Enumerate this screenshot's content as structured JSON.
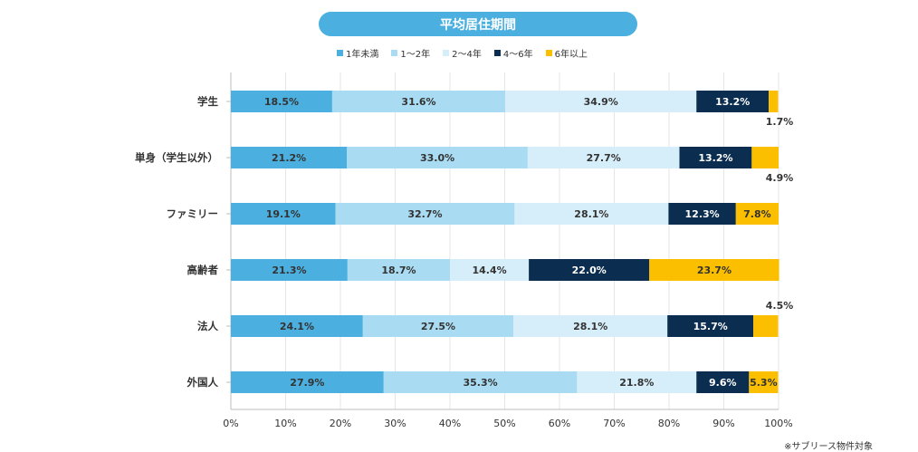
{
  "chart_data": {
    "type": "bar",
    "orientation": "horizontal",
    "stacked": true,
    "title": "平均居住期間",
    "categories": [
      "学生",
      "単身（学生以外）",
      "ファミリー",
      "高齢者",
      "法人",
      "外国人"
    ],
    "series": [
      {
        "name": "1年未満",
        "color": "#4bb0df",
        "label_color": "#333333",
        "values": [
          18.5,
          21.2,
          19.1,
          21.3,
          24.1,
          27.9
        ]
      },
      {
        "name": "1〜2年",
        "color": "#a9dcf2",
        "label_color": "#333333",
        "values": [
          31.6,
          33.0,
          32.7,
          18.7,
          27.5,
          35.3
        ]
      },
      {
        "name": "2〜4年",
        "color": "#d6eef9",
        "label_color": "#333333",
        "values": [
          34.9,
          27.7,
          28.1,
          14.4,
          28.1,
          21.8
        ]
      },
      {
        "name": "4〜6年",
        "color": "#0b2d4f",
        "label_color": "#ffffff",
        "values": [
          13.2,
          13.2,
          12.3,
          22.0,
          15.7,
          9.6
        ]
      },
      {
        "name": "6年以上",
        "color": "#fbbf00",
        "label_color": "#333333",
        "values": [
          1.7,
          4.9,
          7.8,
          23.7,
          4.5,
          5.3
        ]
      }
    ],
    "value_labels": [
      [
        "18.5%",
        "31.6%",
        "34.9%",
        "13.2%",
        "1.7%"
      ],
      [
        "21.2%",
        "33.0%",
        "27.7%",
        "13.2%",
        "4.9%"
      ],
      [
        "19.1%",
        "32.7%",
        "28.1%",
        "12.3%",
        "7.8%"
      ],
      [
        "21.3%",
        "18.7%",
        "14.4%",
        "22.0%",
        "23.7%"
      ],
      [
        "24.1%",
        "27.5%",
        "28.1%",
        "15.7%",
        "4.5%"
      ],
      [
        "27.9%",
        "35.3%",
        "21.8%",
        "9.6%",
        "5.3%"
      ]
    ],
    "outside_labels": [
      {
        "row": 0,
        "series": 4,
        "position": "below"
      },
      {
        "row": 1,
        "series": 4,
        "position": "below"
      },
      {
        "row": 4,
        "series": 4,
        "position": "above"
      }
    ],
    "xlim": [
      0,
      100
    ],
    "x_ticks": [
      0,
      10,
      20,
      30,
      40,
      50,
      60,
      70,
      80,
      90,
      100
    ],
    "x_tick_labels": [
      "0%",
      "10%",
      "20%",
      "30%",
      "40%",
      "50%",
      "60%",
      "70%",
      "80%",
      "90%",
      "100%"
    ],
    "grid": true,
    "legend_position": "top-center"
  },
  "footnote": "※サブリース物件対象"
}
